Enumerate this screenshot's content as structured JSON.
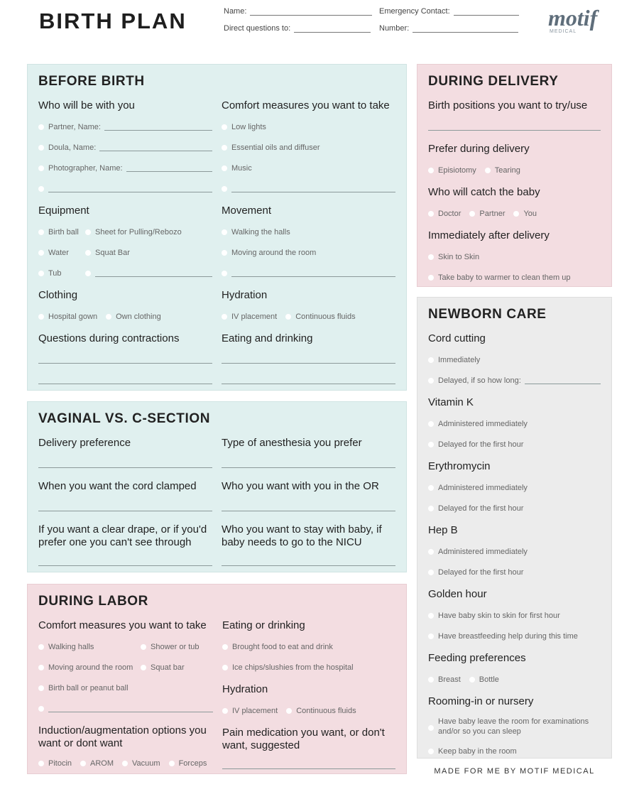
{
  "header": {
    "title": "BIRTH PLAN",
    "fields": {
      "name": "Name:",
      "emergency": "Emergency Contact:",
      "direct": "Direct questions to:",
      "number": "Number:"
    },
    "logo": {
      "word": "motif",
      "sub": "MEDICAL",
      "color": "#5f6e7b"
    }
  },
  "colors": {
    "teal": "#e0f0ef",
    "pink": "#f3dde1",
    "gray": "#ececec"
  },
  "panels": [
    {
      "id": "before-birth",
      "title": "BEFORE BIRTH",
      "columns": [
        [
          {
            "heading": "Who will be with you",
            "rows": [
              [
                {
                  "label": "Partner, Name:",
                  "line": true
                }
              ],
              [
                {
                  "label": "Doula, Name:",
                  "line": true
                }
              ],
              [
                {
                  "label": "Photographer, Name:",
                  "line": true
                }
              ],
              [
                {
                  "label": "",
                  "line": true
                }
              ]
            ]
          },
          {
            "heading": "Equipment",
            "rows": [
              [
                {
                  "label": "Birth ball"
                },
                {
                  "label": "Sheet for Pulling/Rebozo"
                }
              ],
              [
                {
                  "label": "Water"
                },
                {
                  "label": "Squat Bar"
                }
              ],
              [
                {
                  "label": "Tub"
                },
                {
                  "label": "",
                  "line": true
                }
              ]
            ]
          },
          {
            "heading": "Clothing",
            "rows": [
              [
                {
                  "label": "Hospital gown"
                },
                {
                  "label": "Own clothing"
                }
              ]
            ]
          },
          {
            "heading": "Questions during contractions",
            "rows": [
              [
                {
                  "blank": true
                }
              ],
              [
                {
                  "blank": true
                }
              ]
            ]
          }
        ],
        [
          {
            "heading": "Comfort measures you want to take",
            "rows": [
              [
                {
                  "label": "Low lights"
                }
              ],
              [
                {
                  "label": "Essential oils and diffuser"
                }
              ],
              [
                {
                  "label": "Music"
                }
              ],
              [
                {
                  "label": "",
                  "line": true
                }
              ]
            ]
          },
          {
            "heading": "Movement",
            "rows": [
              [
                {
                  "label": "Walking the halls"
                }
              ],
              [
                {
                  "label": "Moving around the room"
                }
              ],
              [
                {
                  "label": "",
                  "line": true
                }
              ]
            ]
          },
          {
            "heading": "Hydration",
            "rows": [
              [
                {
                  "label": "IV placement"
                },
                {
                  "label": "Continuous fluids"
                }
              ]
            ]
          },
          {
            "heading": "Eating and drinking",
            "rows": [
              [
                {
                  "blank": true
                }
              ],
              [
                {
                  "blank": true
                }
              ]
            ]
          }
        ]
      ]
    },
    {
      "id": "vaginal-vs-c-section",
      "title": "VAGINAL VS. C-SECTION",
      "columns": [
        [
          {
            "heading": "Delivery preference",
            "rows": [
              [
                {
                  "blank": true
                }
              ]
            ]
          },
          {
            "heading": "When you want the cord clamped",
            "rows": [
              [
                {
                  "blank": true
                }
              ]
            ]
          },
          {
            "heading": "If you want a clear drape, or if you'd prefer one you can't see through",
            "rows": [
              [
                {
                  "blank": true
                }
              ]
            ]
          }
        ],
        [
          {
            "heading": "Type of anesthesia you prefer",
            "rows": [
              [
                {
                  "blank": true
                }
              ]
            ]
          },
          {
            "heading": "Who you want with you in the OR",
            "rows": [
              [
                {
                  "blank": true
                }
              ]
            ]
          },
          {
            "heading": "Who you want to stay with baby, if baby needs to go to the NICU",
            "rows": [
              [
                {
                  "blank": true
                }
              ]
            ]
          }
        ]
      ]
    },
    {
      "id": "during-labor",
      "title": "DURING LABOR",
      "columns": [
        [
          {
            "heading": "Comfort measures you want to take",
            "rows": [
              [
                {
                  "label": "Walking halls"
                },
                {
                  "label": "Shower or tub"
                }
              ],
              [
                {
                  "label": "Moving around the room"
                },
                {
                  "label": "Squat bar"
                }
              ],
              [
                {
                  "label": "Birth ball or peanut ball"
                }
              ],
              [
                {
                  "label": "",
                  "line": true
                }
              ]
            ]
          },
          {
            "heading": "Induction/augmentation options you want or dont want",
            "rows": [
              [
                {
                  "label": "Pitocin"
                },
                {
                  "label": "AROM"
                },
                {
                  "label": "Vacuum"
                },
                {
                  "label": "Forceps"
                }
              ]
            ]
          }
        ],
        [
          {
            "heading": "Eating or drinking",
            "rows": [
              [
                {
                  "label": "Brought food to eat and drink"
                }
              ],
              [
                {
                  "label": "Ice chips/slushies from the hospital"
                }
              ]
            ]
          },
          {
            "heading": "Hydration",
            "rows": [
              [
                {
                  "label": "IV placement"
                },
                {
                  "label": "Continuous fluids"
                }
              ]
            ]
          },
          {
            "heading": "Pain medication you want, or don't want, suggested",
            "rows": [
              [
                {
                  "blank": true
                }
              ]
            ]
          }
        ]
      ]
    },
    {
      "id": "during-delivery",
      "title": "DURING DELIVERY",
      "columns": [
        [
          {
            "heading": "Birth positions you want to try/use",
            "rows": [
              [
                {
                  "blank": true
                }
              ]
            ]
          },
          {
            "heading": "Prefer during delivery",
            "rows": [
              [
                {
                  "label": "Episiotomy"
                },
                {
                  "label": "Tearing"
                }
              ]
            ]
          },
          {
            "heading": "Who will catch the baby",
            "rows": [
              [
                {
                  "label": "Doctor"
                },
                {
                  "label": "Partner"
                },
                {
                  "label": "You"
                }
              ]
            ]
          },
          {
            "heading": "Immediately after delivery",
            "rows": [
              [
                {
                  "label": "Skin to Skin"
                }
              ],
              [
                {
                  "label": "Take baby to warmer to clean them up"
                }
              ]
            ]
          }
        ]
      ]
    },
    {
      "id": "newborn-care",
      "title": "NEWBORN CARE",
      "columns": [
        [
          {
            "heading": "Cord cutting",
            "rows": [
              [
                {
                  "label": "Immediately"
                }
              ],
              [
                {
                  "label": "Delayed, if so how long:",
                  "line": true
                }
              ]
            ]
          },
          {
            "heading": "Vitamin K",
            "rows": [
              [
                {
                  "label": "Administered immediately"
                }
              ],
              [
                {
                  "label": "Delayed for the first hour"
                }
              ]
            ]
          },
          {
            "heading": "Erythromycin",
            "rows": [
              [
                {
                  "label": "Administered immediately"
                }
              ],
              [
                {
                  "label": "Delayed for the first hour"
                }
              ]
            ]
          },
          {
            "heading": "Hep B",
            "rows": [
              [
                {
                  "label": "Administered immediately"
                }
              ],
              [
                {
                  "label": "Delayed for the first hour"
                }
              ]
            ]
          },
          {
            "heading": "Golden hour",
            "rows": [
              [
                {
                  "label": "Have baby skin to skin for first hour"
                }
              ],
              [
                {
                  "label": "Have breastfeeding help during this time"
                }
              ]
            ]
          },
          {
            "heading": "Feeding preferences",
            "rows": [
              [
                {
                  "label": "Breast"
                },
                {
                  "label": "Bottle"
                }
              ]
            ]
          },
          {
            "heading": "Rooming-in or nursery",
            "rows": [
              [
                {
                  "label": "Have baby leave the room for examinations and/or so you can sleep",
                  "tall": true
                }
              ],
              [
                {
                  "label": "Keep baby in the room"
                }
              ]
            ]
          }
        ]
      ]
    }
  ],
  "footer": "MADE FOR ME BY MOTIF MEDICAL"
}
